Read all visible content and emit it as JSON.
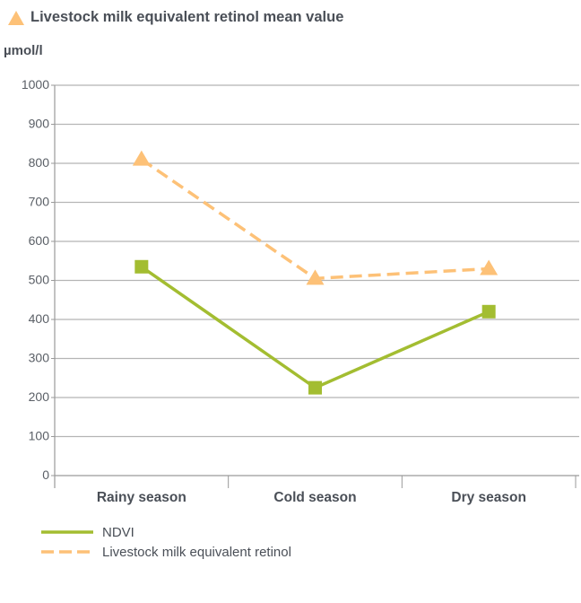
{
  "chart_data": {
    "type": "line",
    "title": "Livestock milk equivalent retinol mean value",
    "ylabel": "µmol/l",
    "xlabel": "",
    "categories": [
      "Rainy season",
      "Cold season",
      "Dry season"
    ],
    "ylim": [
      0,
      1000
    ],
    "yticks": [
      0,
      100,
      200,
      300,
      400,
      500,
      600,
      700,
      800,
      900,
      1000
    ],
    "grid": true,
    "legend_position": "bottom-left",
    "series": [
      {
        "name": "NDVI",
        "values": [
          535,
          225,
          420
        ],
        "color": "#a3bd31",
        "marker": "square",
        "dash": "solid"
      },
      {
        "name": "Livestock milk equivalent retinol",
        "values": [
          810,
          505,
          530
        ],
        "color": "#fdc177",
        "marker": "triangle",
        "dash": "dashed"
      }
    ]
  },
  "colors": {
    "grid": "#b5b5b5",
    "axis": "#9a9a9a",
    "ndvi": "#a3bd31",
    "retinol": "#fdc177"
  }
}
